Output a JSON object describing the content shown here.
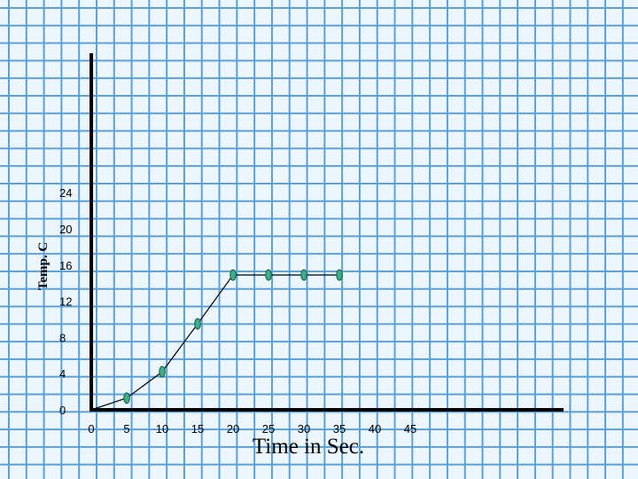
{
  "chart_data": {
    "type": "line",
    "title": "",
    "xlabel": "Time in Sec.",
    "ylabel": "Temp. C",
    "x_ticks": [
      "0",
      "5",
      "10",
      "15",
      "20",
      "25",
      "30",
      "35",
      "40",
      "45"
    ],
    "y_ticks": [
      "0",
      "4",
      "8",
      "12",
      "16",
      "20",
      "24"
    ],
    "xlim": [
      0,
      45
    ],
    "ylim": [
      0,
      24
    ],
    "grid": true,
    "series": [
      {
        "x": [
          0,
          5,
          10,
          15,
          20,
          25,
          30,
          35
        ],
        "y": [
          0,
          1.3,
          4.2,
          9.5,
          14.9,
          14.9,
          14.9,
          14.9
        ]
      }
    ],
    "colors": {
      "marker_fill": "#3cae86",
      "marker_stroke": "#1b5e44",
      "line": "#000000",
      "grid": "#5aa0d8",
      "background": "#eef6fd"
    }
  }
}
